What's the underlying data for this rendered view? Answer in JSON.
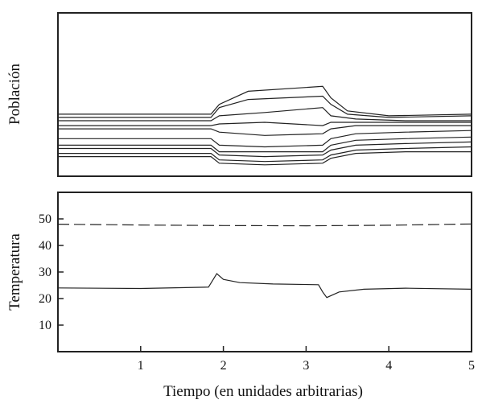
{
  "chart_data": [
    {
      "type": "line",
      "ylabel": "Población",
      "xlim": [
        0,
        5
      ],
      "ylim": [
        0,
        1
      ],
      "grid": false,
      "legend": "none",
      "series": [
        {
          "x": [
            0,
            1.85,
            1.95,
            2.3,
            3.2,
            3.3,
            3.5,
            4.0,
            5.0
          ],
          "y": [
            0.38,
            0.38,
            0.44,
            0.52,
            0.55,
            0.48,
            0.4,
            0.37,
            0.38
          ]
        },
        {
          "x": [
            0,
            1.85,
            1.95,
            2.3,
            3.2,
            3.3,
            3.5,
            4.0,
            5.0
          ],
          "y": [
            0.36,
            0.36,
            0.42,
            0.47,
            0.49,
            0.44,
            0.38,
            0.36,
            0.37
          ]
        },
        {
          "x": [
            0,
            1.85,
            1.95,
            2.5,
            3.2,
            3.3,
            3.6,
            4.2,
            5.0
          ],
          "y": [
            0.34,
            0.34,
            0.37,
            0.39,
            0.42,
            0.37,
            0.35,
            0.34,
            0.34
          ]
        },
        {
          "x": [
            0,
            1.85,
            1.95,
            2.5,
            3.2,
            3.3,
            3.6,
            4.2,
            5.0
          ],
          "y": [
            0.31,
            0.31,
            0.32,
            0.33,
            0.31,
            0.33,
            0.33,
            0.33,
            0.33
          ]
        },
        {
          "x": [
            0,
            1.85,
            1.95,
            2.5,
            3.2,
            3.3,
            3.6,
            4.2,
            5.0
          ],
          "y": [
            0.29,
            0.29,
            0.27,
            0.25,
            0.26,
            0.29,
            0.31,
            0.31,
            0.31
          ]
        },
        {
          "x": [
            0,
            1.85,
            1.95,
            2.5,
            3.2,
            3.3,
            3.6,
            4.2,
            5.0
          ],
          "y": [
            0.23,
            0.23,
            0.19,
            0.18,
            0.19,
            0.23,
            0.26,
            0.27,
            0.28
          ]
        },
        {
          "x": [
            0,
            1.85,
            1.95,
            2.5,
            3.2,
            3.3,
            3.6,
            4.2,
            5.0
          ],
          "y": [
            0.19,
            0.19,
            0.15,
            0.15,
            0.15,
            0.19,
            0.22,
            0.23,
            0.24
          ]
        },
        {
          "x": [
            0,
            1.85,
            1.95,
            2.5,
            3.2,
            3.3,
            3.6,
            4.2,
            5.0
          ],
          "y": [
            0.17,
            0.17,
            0.13,
            0.12,
            0.13,
            0.16,
            0.19,
            0.2,
            0.21
          ]
        },
        {
          "x": [
            0,
            1.85,
            1.95,
            2.5,
            3.2,
            3.3,
            3.6,
            4.2,
            5.0
          ],
          "y": [
            0.14,
            0.14,
            0.1,
            0.09,
            0.1,
            0.13,
            0.16,
            0.17,
            0.18
          ]
        },
        {
          "x": [
            0,
            1.85,
            1.95,
            2.5,
            3.2,
            3.3,
            3.6,
            4.2,
            5.0
          ],
          "y": [
            0.12,
            0.12,
            0.08,
            0.07,
            0.08,
            0.11,
            0.14,
            0.15,
            0.15
          ]
        }
      ]
    },
    {
      "type": "line",
      "xlabel": "Tiempo (en unidades arbitrarias)",
      "ylabel": "Temperatura",
      "xlim": [
        0,
        5
      ],
      "ylim": [
        0,
        60
      ],
      "xticks": [
        1,
        2,
        3,
        4,
        5
      ],
      "yticks": [
        10,
        20,
        30,
        40,
        50
      ],
      "grid": false,
      "legend": "none",
      "series": [
        {
          "style": "dashed",
          "x": [
            0,
            1.0,
            2.0,
            3.0,
            4.0,
            5.0
          ],
          "y": [
            48,
            47.7,
            47.5,
            47.4,
            47.6,
            48.1
          ]
        },
        {
          "style": "solid",
          "x": [
            0,
            1.0,
            1.82,
            1.92,
            2.0,
            2.2,
            2.6,
            3.15,
            3.2,
            3.25,
            3.4,
            3.7,
            4.2,
            5.0
          ],
          "y": [
            24,
            23.8,
            24.3,
            29.4,
            27.2,
            26.0,
            25.5,
            25.2,
            22.5,
            20.4,
            22.5,
            23.5,
            23.9,
            23.5
          ]
        }
      ]
    }
  ]
}
